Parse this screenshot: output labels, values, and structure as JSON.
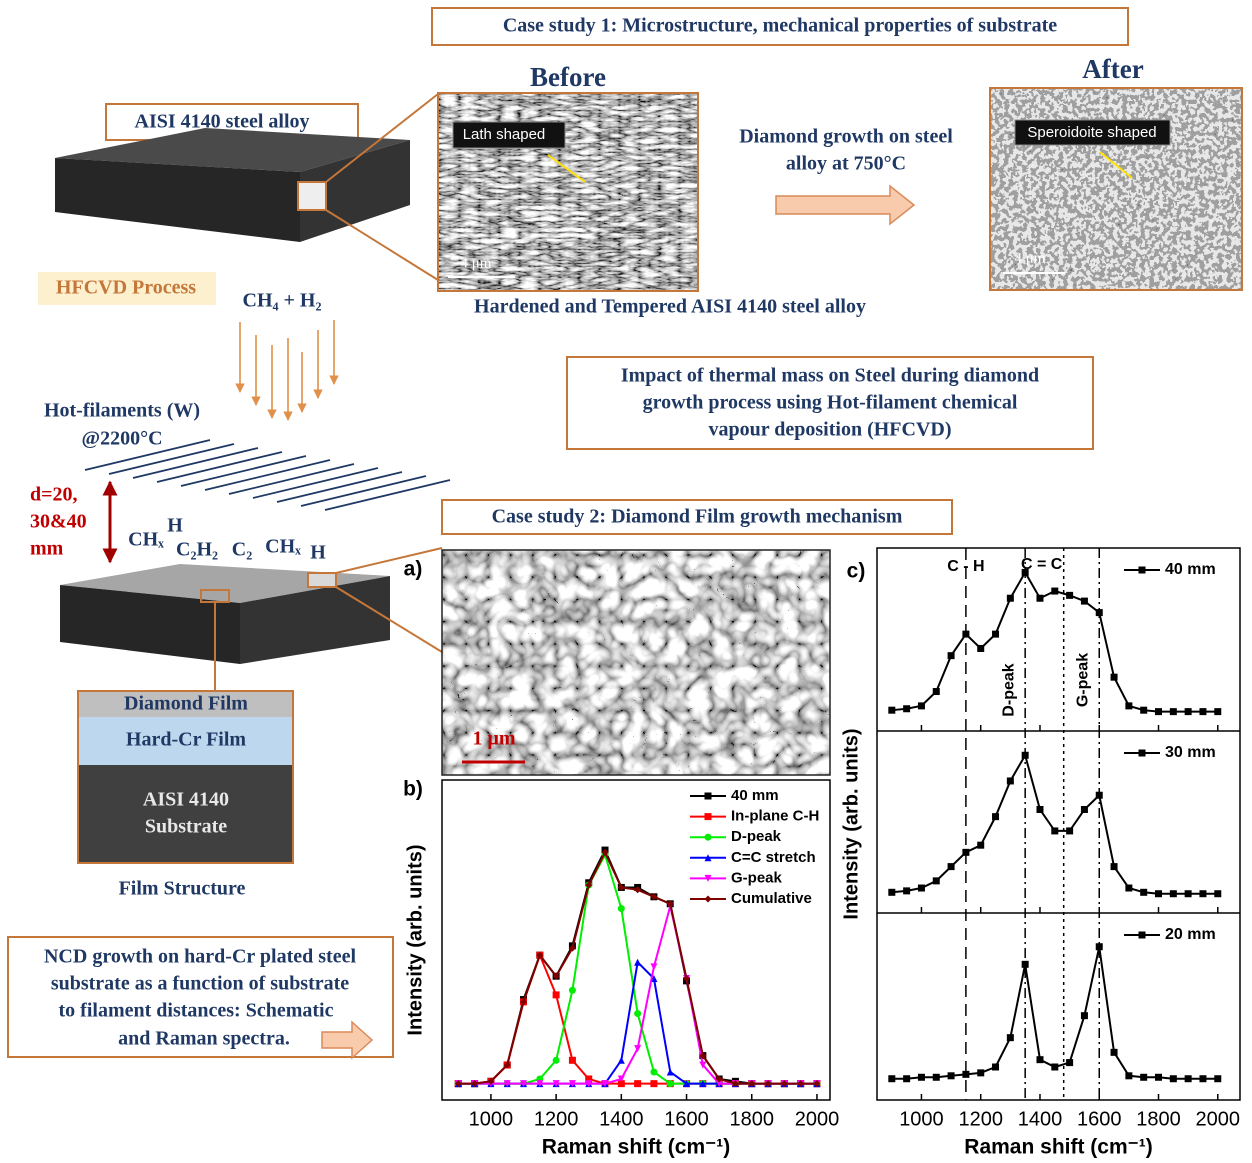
{
  "labels": {
    "case_study_1": "Case study 1: Microstructure, mechanical properties of substrate",
    "before": "Before",
    "after": "After",
    "steel": "AISI 4140 steel alloy",
    "lath": "Lath shaped",
    "scale_before": "4 μm",
    "speroid": "Speroidoite shaped",
    "scale_after": "4 μm",
    "growth": [
      "Diamond growth on steel",
      "alloy at 750°C"
    ],
    "hardened": "Hardened and Tempered AISI 4140 steel alloy",
    "hfcvd": "HFCVD Process",
    "gases": "CH₄ + H₂",
    "impact": [
      "Impact of thermal mass on Steel during diamond",
      "growth process using Hot-filament chemical",
      "vapour deposition (HFCVD)"
    ],
    "filaments": [
      "Hot-filaments (W)",
      "@2200°C"
    ],
    "distance": [
      "d=20,",
      "30&40",
      "mm"
    ],
    "species": [
      "CHₓ",
      "H",
      "C₂H₂",
      "C₂",
      "CHₓ",
      "H",
      "C₂",
      "H"
    ],
    "case_study_2": "Case study 2: Diamond Film growth mechanism",
    "layers": [
      "Diamond Film",
      "Hard-Cr Film",
      "AISI 4140",
      "Substrate"
    ],
    "film_structure": "Film Structure",
    "summary": [
      "NCD growth on hard-Cr plated steel",
      "substrate as a function of substrate",
      "to filament distances: Schematic",
      "and Raman spectra."
    ],
    "scale_a": "1 μm",
    "panels": [
      "a)",
      "b)",
      "c)"
    ]
  },
  "chart_data": [
    {
      "type": "line",
      "xlabel": "Raman shift (cm⁻¹)",
      "ylabel": "Intensity (arb. units)",
      "x": [
        900,
        950,
        1000,
        1050,
        1100,
        1150,
        1200,
        1250,
        1300,
        1350,
        1400,
        1450,
        1500,
        1550,
        1600,
        1650,
        1700,
        1750,
        1800,
        1850,
        1900,
        1950,
        2000
      ],
      "xlim": [
        850,
        2040
      ],
      "xticks": [
        1000,
        1200,
        1400,
        1600,
        1800,
        2000
      ],
      "ylim": [
        -0.07,
        1.3
      ],
      "series": [
        {
          "name": "40 mm",
          "color": "#000000",
          "marker": "square",
          "values": [
            0,
            0,
            0.01,
            0.08,
            0.36,
            0.55,
            0.46,
            0.59,
            0.86,
            1.0,
            0.84,
            0.84,
            0.8,
            0.77,
            0.44,
            0.12,
            0.02,
            0.01,
            0,
            0,
            0,
            0,
            0
          ]
        },
        {
          "name": "In-plane C-H",
          "color": "#ff0000",
          "marker": "square",
          "values": [
            0,
            0,
            0.01,
            0.08,
            0.35,
            0.55,
            0.38,
            0.1,
            0.02,
            0,
            0,
            0,
            0,
            0,
            0,
            0,
            0,
            0,
            0,
            0,
            0,
            0,
            0
          ]
        },
        {
          "name": "D-peak",
          "color": "#00ee00",
          "marker": "circle",
          "values": [
            0,
            0,
            0,
            0,
            0,
            0.02,
            0.1,
            0.4,
            0.85,
            0.98,
            0.75,
            0.3,
            0.05,
            0,
            0,
            0,
            0,
            0,
            0,
            0,
            0,
            0,
            0
          ]
        },
        {
          "name": "C=C stretch",
          "color": "#0000ff",
          "marker": "triangle",
          "values": [
            0,
            0,
            0,
            0,
            0,
            0,
            0,
            0,
            0,
            0,
            0.1,
            0.52,
            0.45,
            0.05,
            0,
            0,
            0,
            0,
            0,
            0,
            0,
            0,
            0
          ]
        },
        {
          "name": "G-peak",
          "color": "#ff00ff",
          "marker": "triangle-down",
          "values": [
            0,
            0,
            0,
            0,
            0,
            0,
            0,
            0,
            0,
            0,
            0.02,
            0.15,
            0.5,
            0.76,
            0.45,
            0.08,
            0,
            0,
            0,
            0,
            0,
            0,
            0
          ]
        },
        {
          "name": "Cumulative",
          "color": "#800000",
          "marker": "diamond",
          "values": [
            0,
            0,
            0.01,
            0.08,
            0.35,
            0.55,
            0.46,
            0.58,
            0.85,
            0.99,
            0.84,
            0.83,
            0.8,
            0.77,
            0.45,
            0.12,
            0.02,
            0,
            0,
            0,
            0,
            0,
            0
          ]
        }
      ]
    },
    {
      "type": "line",
      "ylabel": "Intensity (arb. units)",
      "x": [
        900,
        950,
        1000,
        1050,
        1100,
        1150,
        1200,
        1250,
        1300,
        1350,
        1400,
        1450,
        1500,
        1550,
        1600,
        1650,
        1700,
        1750,
        1800,
        1850,
        1900,
        1950,
        2000
      ],
      "xlim": [
        850,
        2075
      ],
      "xticks": [
        1000,
        1200,
        1400,
        1600,
        1800,
        2000
      ],
      "ylim": [
        -0.125,
        1.15
      ],
      "vlines": [
        {
          "value": 1150,
          "label": "C - H"
        },
        {
          "value": 1350,
          "label": "D-peak"
        },
        {
          "value": 1480,
          "label": "C = C"
        },
        {
          "value": 1600,
          "label": "G-peak"
        }
      ],
      "series": [
        {
          "name": "40 mm",
          "color": "#000000",
          "marker": "square",
          "values": [
            0.02,
            0.03,
            0.05,
            0.15,
            0.4,
            0.55,
            0.45,
            0.55,
            0.8,
            0.98,
            0.8,
            0.85,
            0.82,
            0.78,
            0.7,
            0.25,
            0.05,
            0.02,
            0.01,
            0.01,
            0.01,
            0.01,
            0.01
          ]
        }
      ]
    },
    {
      "type": "line",
      "x": [
        900,
        950,
        1000,
        1050,
        1100,
        1150,
        1200,
        1250,
        1300,
        1350,
        1400,
        1450,
        1500,
        1550,
        1600,
        1650,
        1700,
        1750,
        1800,
        1850,
        1900,
        1950,
        2000
      ],
      "xlim": [
        850,
        2075
      ],
      "xticks": [
        1000,
        1200,
        1400,
        1600,
        1800,
        2000
      ],
      "ylim": [
        -0.125,
        1.15
      ],
      "series": [
        {
          "name": "30 mm",
          "color": "#000000",
          "marker": "square",
          "values": [
            0.02,
            0.03,
            0.05,
            0.1,
            0.2,
            0.3,
            0.35,
            0.55,
            0.8,
            0.98,
            0.6,
            0.45,
            0.45,
            0.6,
            0.7,
            0.2,
            0.05,
            0.02,
            0.01,
            0.01,
            0.01,
            0.01,
            0.01
          ]
        }
      ]
    },
    {
      "type": "line",
      "xlabel": "Raman shift (cm⁻¹)",
      "x": [
        900,
        950,
        1000,
        1050,
        1100,
        1150,
        1200,
        1250,
        1300,
        1350,
        1400,
        1450,
        1500,
        1550,
        1600,
        1650,
        1700,
        1750,
        1800,
        1850,
        1900,
        1950,
        2000
      ],
      "xlim": [
        850,
        2075
      ],
      "xticks": [
        1000,
        1200,
        1400,
        1600,
        1800,
        2000
      ],
      "ylim": [
        -0.125,
        1.15
      ],
      "series": [
        {
          "name": "20 mm",
          "color": "#000000",
          "marker": "square",
          "values": [
            0.02,
            0.02,
            0.03,
            0.03,
            0.04,
            0.05,
            0.06,
            0.1,
            0.3,
            0.8,
            0.15,
            0.1,
            0.13,
            0.45,
            0.92,
            0.2,
            0.04,
            0.03,
            0.03,
            0.02,
            0.02,
            0.02,
            0.02
          ]
        }
      ]
    }
  ]
}
